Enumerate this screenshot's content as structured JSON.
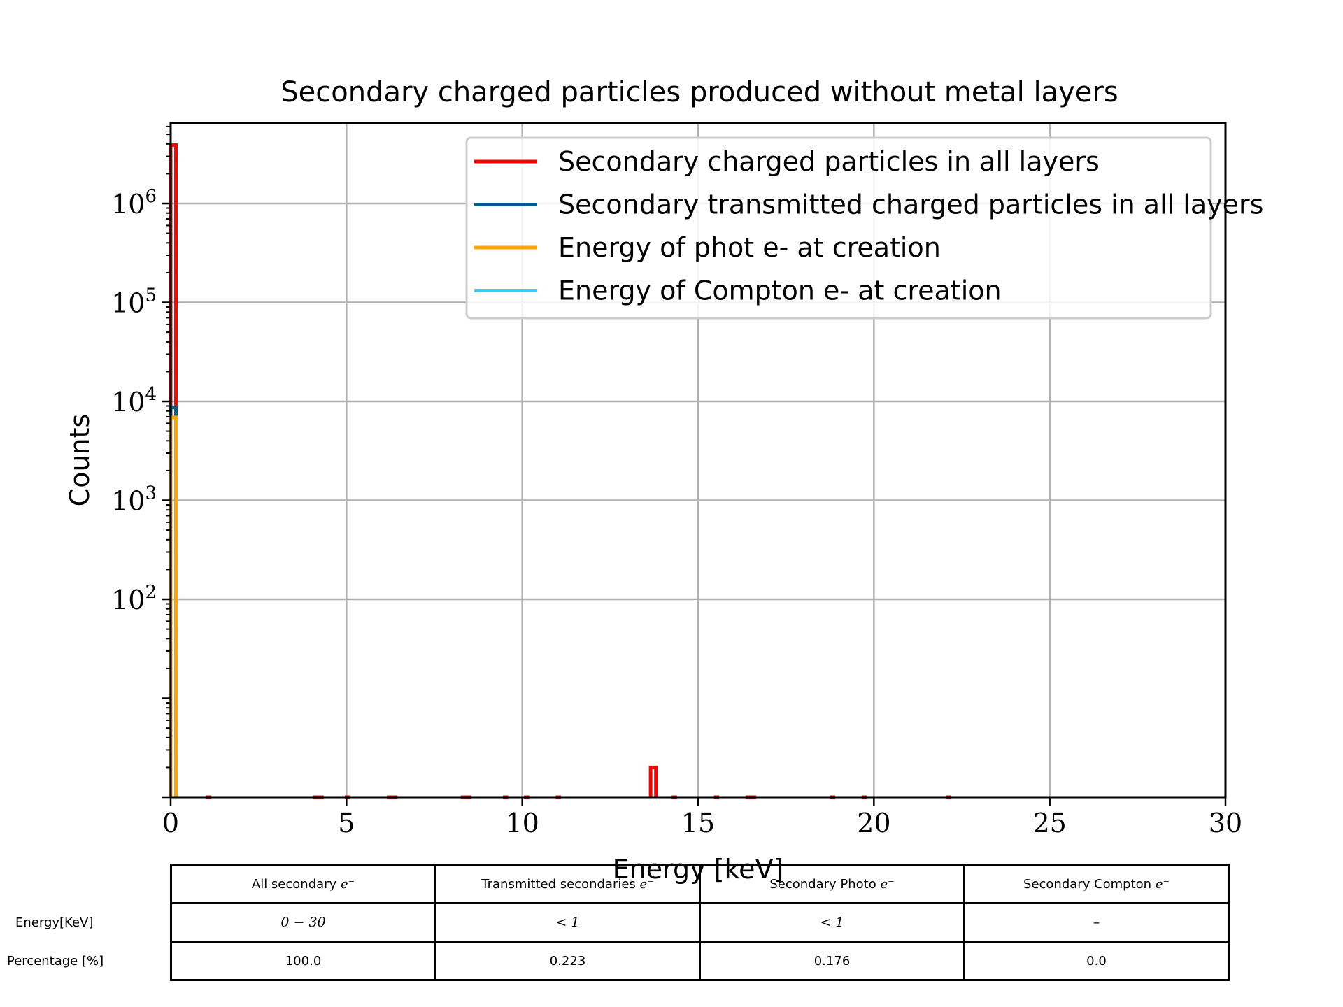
{
  "chart_data": {
    "type": "histogram",
    "title": "Secondary charged particles produced without metal layers",
    "xlabel": "Energy [keV]",
    "ylabel": "Counts",
    "xlim": [
      0,
      30
    ],
    "ylim": [
      1.0,
      6500000
    ],
    "yscale": "log",
    "grid": true,
    "legend_position": "top-right",
    "x_ticks": [
      0,
      5,
      10,
      15,
      20,
      25,
      30
    ],
    "y_ticks": [
      100,
      1000,
      10000,
      100000,
      1000000
    ],
    "y_tick_labels": [
      {
        "base": "10",
        "exp": "2"
      },
      {
        "base": "10",
        "exp": "3"
      },
      {
        "base": "10",
        "exp": "4"
      },
      {
        "base": "10",
        "exp": "5"
      },
      {
        "base": "10",
        "exp": "6"
      }
    ],
    "bin_width": 0.15,
    "series": [
      {
        "name": "Secondary charged particles in all layers",
        "color": "#ff0000",
        "bins": [
          {
            "x": 0.0,
            "count": 3900000
          },
          {
            "x": 1.0,
            "count": 1
          },
          {
            "x": 4.05,
            "count": 1
          },
          {
            "x": 4.2,
            "count": 1
          },
          {
            "x": 4.95,
            "count": 1
          },
          {
            "x": 6.15,
            "count": 1
          },
          {
            "x": 6.3,
            "count": 1
          },
          {
            "x": 8.25,
            "count": 1
          },
          {
            "x": 8.4,
            "count": 1
          },
          {
            "x": 9.45,
            "count": 1
          },
          {
            "x": 10.05,
            "count": 1
          },
          {
            "x": 10.95,
            "count": 1
          },
          {
            "x": 13.65,
            "count": 2
          },
          {
            "x": 14.25,
            "count": 1
          },
          {
            "x": 15.45,
            "count": 1
          },
          {
            "x": 16.35,
            "count": 1
          },
          {
            "x": 16.5,
            "count": 1
          },
          {
            "x": 18.75,
            "count": 1
          },
          {
            "x": 19.65,
            "count": 1
          },
          {
            "x": 22.05,
            "count": 1
          }
        ]
      },
      {
        "name": "Secondary transmitted charged particles in all layers",
        "color": "#0b5a86",
        "bins": [
          {
            "x": 0.0,
            "count": 8700
          }
        ]
      },
      {
        "name": "Energy of phot e- at creation",
        "color": "#ffa500",
        "bins": [
          {
            "x": 0.0,
            "count": 6900
          }
        ]
      },
      {
        "name": "Energy of Compton e- at creation",
        "color": "#3cc8f0",
        "bins": []
      }
    ]
  },
  "table": {
    "columns": [
      "All secondary",
      "Transmitted secondaries",
      "Secondary Photo",
      "Secondary Compton"
    ],
    "column_math": "e⁻",
    "rows": [
      {
        "label": "Energy[KeV]",
        "cells": [
          "0 − 30",
          "< 1",
          "< 1",
          "–"
        ]
      },
      {
        "label": "Percentage [%]",
        "cells": [
          "100.0",
          "0.223",
          "0.176",
          "0.0"
        ]
      }
    ]
  }
}
